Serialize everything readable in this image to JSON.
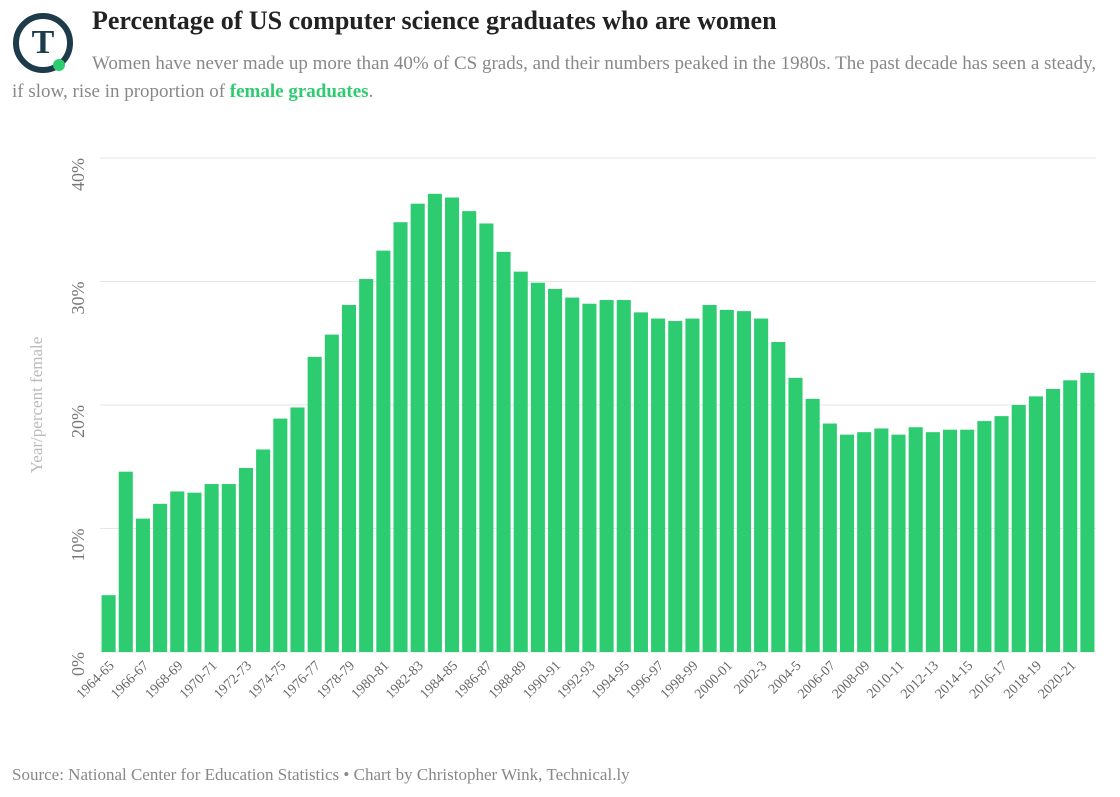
{
  "logo": "T",
  "chart_data": {
    "type": "bar",
    "title": "Percentage of US computer science graduates who are women",
    "subtitle": [
      "Women have never made up more than 40% of CS grads, and their numbers peaked in the 1980s. The past decade has seen a steady, if slow, rise in proportion of ",
      "female graduates",
      "."
    ],
    "y_label": "Year/percent female",
    "source": "Source: National Center for Education Statistics • Chart by Christopher Wink, Technical.ly",
    "color": "#2ecc71",
    "categories": [
      "1964-65",
      null,
      "1966-67",
      null,
      "1968-69",
      null,
      "1970-71",
      null,
      "1972-73",
      null,
      "1974-75",
      null,
      "1976-77",
      null,
      "1978-79",
      null,
      "1980-81",
      null,
      "1982-83",
      null,
      "1984-85",
      null,
      "1986-87",
      null,
      "1988-89",
      null,
      "1990-91",
      null,
      "1992-93",
      null,
      "1994-95",
      null,
      "1996-97",
      null,
      "1998-99",
      null,
      "2000-01",
      null,
      "2002-3",
      null,
      "2004-5",
      null,
      "2006-07",
      null,
      "2008-09",
      null,
      "2010-11",
      null,
      "2012-13",
      null,
      "2014-15",
      null,
      "2016-17",
      null,
      "2018-19",
      null,
      "2020-21",
      null
    ],
    "values": [
      4.6,
      14.6,
      10.8,
      12.0,
      13.0,
      12.9,
      13.6,
      13.6,
      14.9,
      16.4,
      18.9,
      19.8,
      23.9,
      25.7,
      28.1,
      30.2,
      32.5,
      34.8,
      36.3,
      37.1,
      36.8,
      35.7,
      34.7,
      32.4,
      30.8,
      29.9,
      29.4,
      28.7,
      28.2,
      28.5,
      28.5,
      27.5,
      27.0,
      26.8,
      27.0,
      28.1,
      27.7,
      27.6,
      27.0,
      25.1,
      22.2,
      20.5,
      18.5,
      17.6,
      17.8,
      18.1,
      17.6,
      18.2,
      17.8,
      18.0,
      18.0,
      18.7,
      19.1,
      20.0,
      20.7,
      21.3,
      22.0,
      22.6
    ],
    "ylim": [
      0,
      40
    ],
    "yticks": [
      {
        "value": 0,
        "label": "0%"
      },
      {
        "value": 10,
        "label": "10%"
      },
      {
        "value": 20,
        "label": "20%"
      },
      {
        "value": 30,
        "label": "30%"
      },
      {
        "value": 40,
        "label": "40%"
      }
    ],
    "grid": true
  }
}
